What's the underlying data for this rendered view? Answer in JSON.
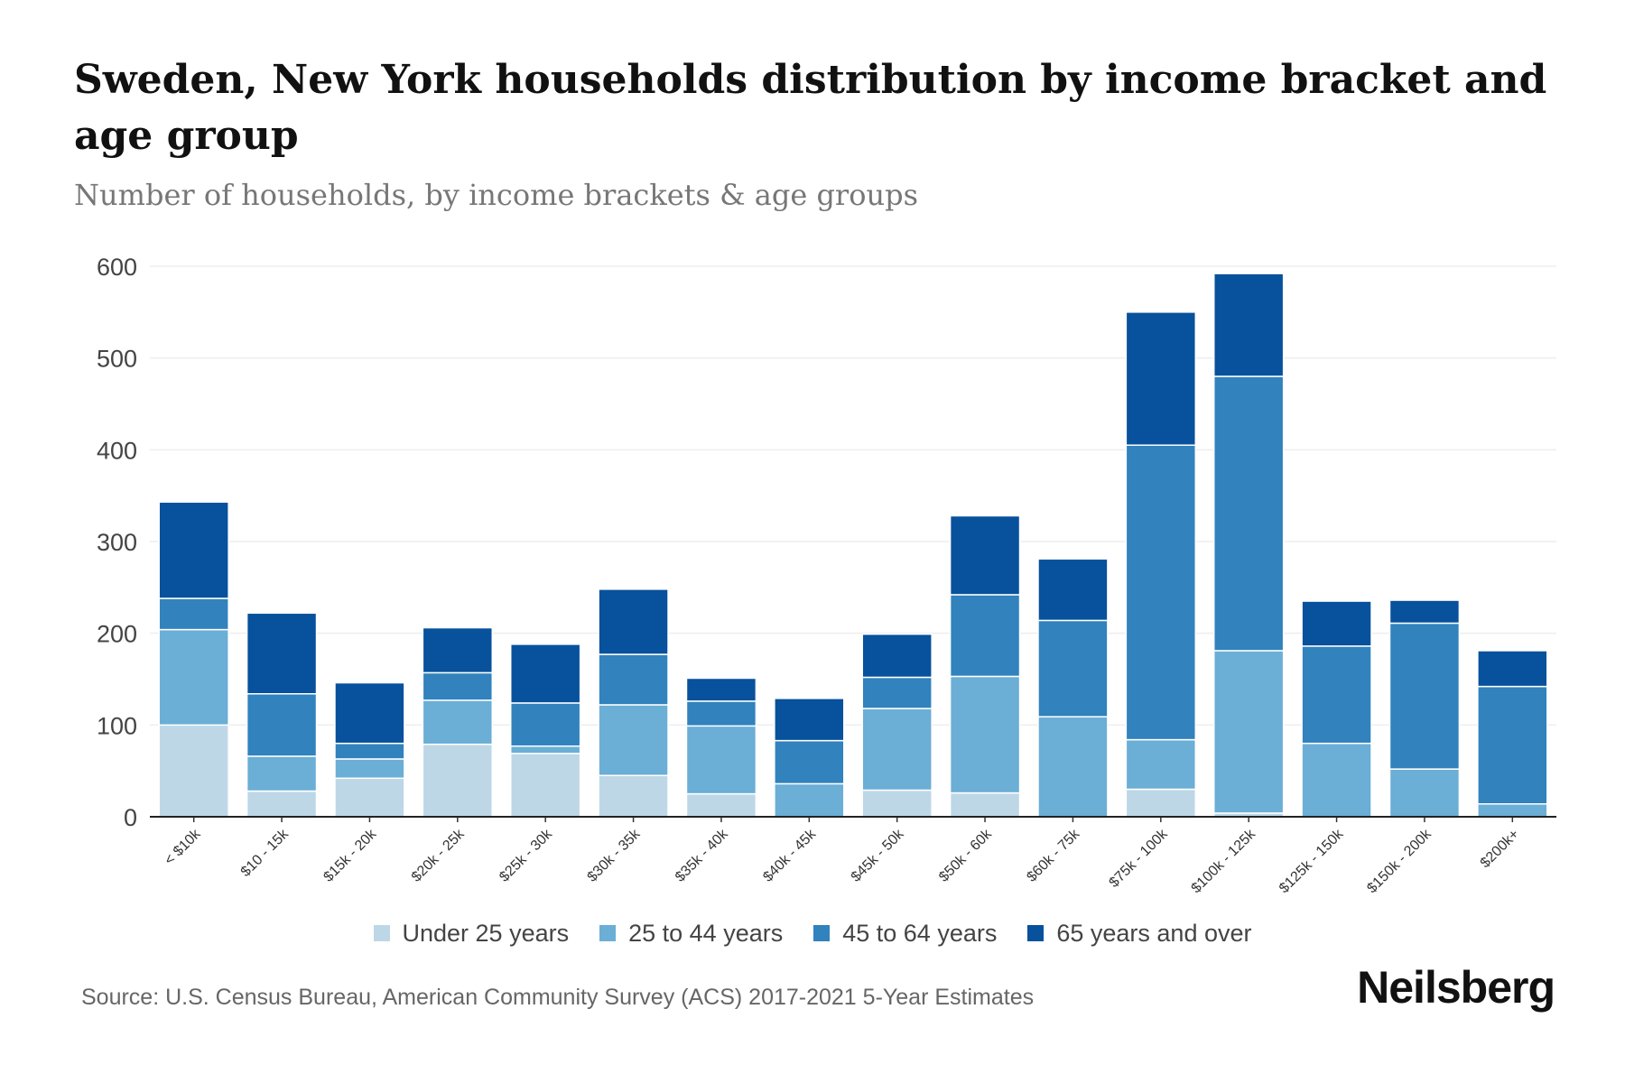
{
  "chart_data": {
    "type": "bar",
    "stacked": true,
    "title": "Sweden, New York households distribution by income bracket and age group",
    "subtitle": "Number of households, by income brackets & age groups",
    "xlabel": "",
    "ylabel": "",
    "ylim": [
      0,
      600
    ],
    "yticks": [
      0,
      100,
      200,
      300,
      400,
      500,
      600
    ],
    "grid": true,
    "legend_position": "bottom",
    "categories": [
      "< $10k",
      "$10 - 15k",
      "$15k - 20k",
      "$20k - 25k",
      "$25k - 30k",
      "$30k - 35k",
      "$35k - 40k",
      "$40k - 45k",
      "$45k - 50k",
      "$50k - 60k",
      "$60k - 75k",
      "$75k - 100k",
      "$100k - 125k",
      "$125k - 150k",
      "$150k - 200k",
      "$200k+"
    ],
    "series": [
      {
        "name": "Under 25 years",
        "color": "#bdd7e7",
        "values": [
          100,
          28,
          42,
          79,
          69,
          45,
          25,
          0,
          29,
          26,
          0,
          30,
          4,
          0,
          0,
          0
        ]
      },
      {
        "name": "25 to 44 years",
        "color": "#6baed6",
        "values": [
          104,
          38,
          21,
          48,
          8,
          77,
          74,
          36,
          89,
          127,
          109,
          54,
          177,
          80,
          52,
          14
        ]
      },
      {
        "name": "45 to 64 years",
        "color": "#3182bd",
        "values": [
          34,
          68,
          17,
          30,
          47,
          55,
          27,
          47,
          34,
          89,
          105,
          321,
          299,
          106,
          159,
          128
        ]
      },
      {
        "name": "65 years and over",
        "color": "#08519c",
        "values": [
          105,
          88,
          66,
          49,
          64,
          71,
          25,
          46,
          47,
          86,
          67,
          145,
          112,
          49,
          25,
          39
        ]
      }
    ]
  },
  "source": "Source: U.S. Census Bureau, American Community Survey (ACS) 2017-2021 5-Year Estimates",
  "logo": "Neilsberg"
}
